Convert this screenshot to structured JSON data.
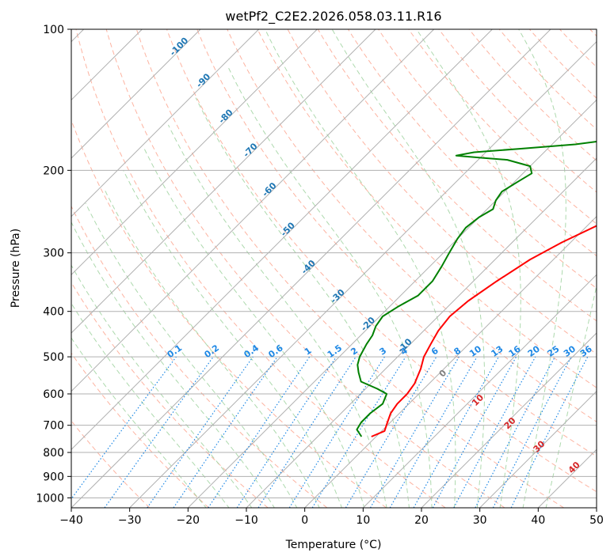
{
  "chart_data": {
    "type": "line",
    "title": "wetPf2_C2E2.2026.058.03.11.R16",
    "xlabel": "Temperature (°C)",
    "ylabel": "Pressure (hPa)",
    "xlim": [
      -40,
      50
    ],
    "ylim": [
      1050,
      100
    ],
    "y_scale": "log",
    "x_ticks": [
      -40,
      -30,
      -20,
      -10,
      0,
      10,
      20,
      30,
      40,
      50
    ],
    "y_ticks": [
      100,
      200,
      300,
      400,
      500,
      600,
      700,
      800,
      900,
      1000
    ],
    "grid": true,
    "series": [
      {
        "color": "#ff0000",
        "points": [
          [
            -0.8,
            740
          ],
          [
            0.5,
            720
          ],
          [
            -0.5,
            690
          ],
          [
            -1.5,
            660
          ],
          [
            -2,
            630
          ],
          [
            -2,
            600
          ],
          [
            -2.5,
            570
          ],
          [
            -4,
            530
          ],
          [
            -5.5,
            500
          ],
          [
            -6.5,
            470
          ],
          [
            -7.5,
            440
          ],
          [
            -8,
            410
          ],
          [
            -7.5,
            380
          ],
          [
            -6,
            345
          ],
          [
            -4,
            310
          ],
          [
            -1.5,
            285
          ],
          [
            2,
            260
          ],
          [
            5,
            240
          ],
          [
            8,
            222
          ],
          [
            10.5,
            205
          ],
          [
            12.5,
            190
          ],
          [
            14.5,
            175
          ],
          [
            16,
            160
          ],
          [
            17.5,
            147
          ],
          [
            18.5,
            138
          ],
          [
            18.2,
            130
          ],
          [
            17.5,
            121
          ],
          [
            18,
            113
          ],
          [
            20,
            108
          ],
          [
            23,
            105
          ],
          [
            25.5,
            102
          ],
          [
            26,
            100
          ]
        ]
      },
      {
        "color": "#008000",
        "points": [
          [
            -2.5,
            740
          ],
          [
            -4.5,
            715
          ],
          [
            -5,
            690
          ],
          [
            -5,
            660
          ],
          [
            -4.5,
            630
          ],
          [
            -5.5,
            600
          ],
          [
            -8,
            585
          ],
          [
            -12,
            565
          ],
          [
            -14,
            540
          ],
          [
            -15.5,
            520
          ],
          [
            -16.5,
            500
          ],
          [
            -17.5,
            470
          ],
          [
            -18,
            450
          ],
          [
            -19,
            430
          ],
          [
            -19.5,
            410
          ],
          [
            -18.5,
            390
          ],
          [
            -17,
            370
          ],
          [
            -17,
            345
          ],
          [
            -18,
            320
          ],
          [
            -19,
            300
          ],
          [
            -20,
            280
          ],
          [
            -20.5,
            265
          ],
          [
            -20,
            252
          ],
          [
            -19,
            242
          ],
          [
            -20,
            232
          ],
          [
            -20.5,
            222
          ],
          [
            -19.5,
            212
          ],
          [
            -18.5,
            203
          ],
          [
            -20,
            196
          ],
          [
            -25,
            190
          ],
          [
            -30,
            188
          ],
          [
            -34.5,
            186
          ],
          [
            -32,
            183
          ],
          [
            -25,
            180
          ],
          [
            -16,
            176
          ],
          [
            -8,
            170
          ],
          [
            -4,
            162
          ],
          [
            -2,
            152
          ],
          [
            -1,
            140
          ],
          [
            -2,
            133
          ],
          [
            -4,
            127
          ],
          [
            -6,
            120
          ],
          [
            -8,
            113
          ],
          [
            -10,
            109
          ],
          [
            -11,
            106
          ],
          [
            -8,
            103
          ],
          [
            -3,
            100
          ]
        ]
      }
    ],
    "isotherm_labels": [
      "-100",
      "-90",
      "-80",
      "-70",
      "-60",
      "-50",
      "-40",
      "-30",
      "-20",
      "-10"
    ],
    "mixing_ratio_labels": [
      "0.1",
      "0.2",
      "0.4",
      "0.6",
      "1",
      "1.5",
      "2",
      "3",
      "4",
      "6",
      "8",
      "10",
      "13",
      "16",
      "20",
      "25",
      "30",
      "36"
    ],
    "moist_adiabat_labels": [
      "0",
      "10",
      "20",
      "30",
      "40"
    ],
    "colors": {
      "temperature": "#ff0000",
      "dewpoint": "#008000",
      "isotherm_label": "#1f77b4",
      "mixing_ratio": "#1e88e5",
      "moist_label": "#d62728",
      "zero_label": "#808080",
      "grid": "#b0b0b0",
      "dry_adiabat": "#fda08a",
      "moist_adiabat": "#98d098"
    }
  }
}
